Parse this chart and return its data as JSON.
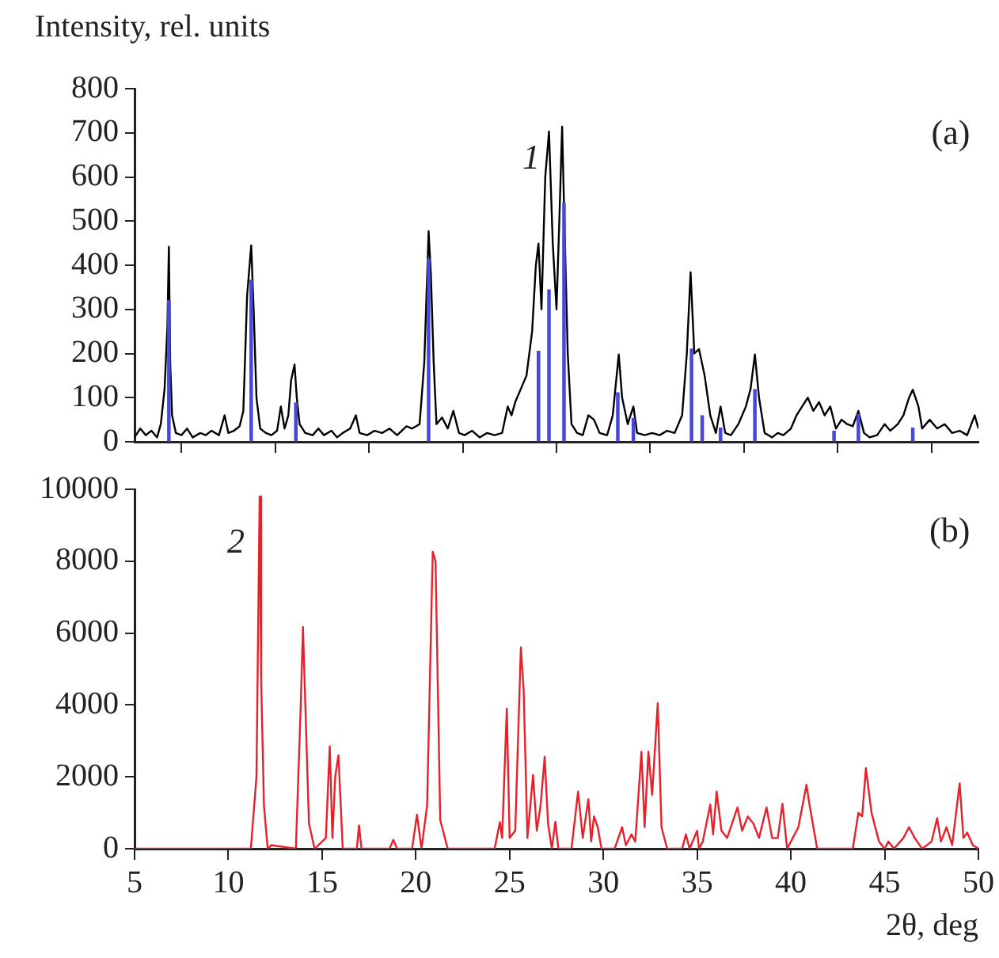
{
  "chart_data": [
    {
      "type": "line",
      "ylabel": "Intensity, rel. units",
      "annotations": [
        "(a)",
        "1"
      ],
      "xlim": [
        5,
        50
      ],
      "xticks": [
        5,
        10,
        15,
        20,
        25,
        30,
        35,
        40,
        45,
        50
      ],
      "ylim": [
        0,
        800
      ],
      "yticks": [
        0,
        100,
        200,
        300,
        400,
        500,
        600,
        700,
        800
      ],
      "tick_labels": "y",
      "series": [
        {
          "type": "line",
          "color": "#000000",
          "x": [
            5.0,
            5.3,
            5.6,
            5.9,
            6.2,
            6.4,
            6.6,
            6.75,
            6.83,
            6.9,
            7.0,
            7.2,
            7.5,
            7.8,
            8.1,
            8.5,
            8.8,
            9.1,
            9.5,
            9.8,
            10.0,
            10.3,
            10.6,
            10.8,
            11.0,
            11.22,
            11.35,
            11.5,
            11.7,
            12.0,
            12.3,
            12.6,
            12.8,
            13.0,
            13.2,
            13.35,
            13.53,
            13.65,
            13.8,
            14.1,
            14.5,
            14.8,
            15.1,
            15.5,
            15.8,
            16.1,
            16.5,
            16.8,
            17.0,
            17.4,
            17.8,
            18.2,
            18.6,
            19.0,
            19.5,
            19.8,
            20.2,
            20.45,
            20.68,
            20.8,
            20.95,
            21.1,
            21.4,
            21.7,
            22.0,
            22.3,
            22.6,
            23.0,
            23.4,
            23.8,
            24.2,
            24.6,
            24.9,
            25.1,
            25.3,
            25.6,
            25.9,
            26.2,
            26.4,
            26.54,
            26.7,
            26.9,
            27.1,
            27.3,
            27.5,
            27.65,
            27.8,
            27.95,
            28.1,
            28.3,
            28.6,
            28.9,
            29.2,
            29.5,
            29.8,
            30.2,
            30.5,
            30.82,
            31.0,
            31.3,
            31.6,
            31.8,
            32.2,
            32.6,
            33.0,
            33.4,
            33.8,
            34.2,
            34.45,
            34.65,
            34.85,
            35.1,
            35.4,
            35.7,
            36.0,
            36.25,
            36.5,
            36.8,
            37.2,
            37.6,
            37.85,
            38.08,
            38.3,
            38.6,
            39.0,
            39.3,
            39.6,
            40.0,
            40.3,
            40.6,
            40.9,
            41.2,
            41.5,
            41.8,
            42.1,
            42.4,
            42.7,
            43.0,
            43.3,
            43.6,
            43.9,
            44.2,
            44.6,
            45.0,
            45.3,
            45.7,
            46.0,
            46.3,
            46.5,
            46.8,
            47.0,
            47.4,
            47.8,
            48.2,
            48.6,
            49.0,
            49.4,
            49.8,
            50.0
          ],
          "values": [
            10,
            30,
            15,
            25,
            10,
            40,
            120,
            260,
            442,
            180,
            60,
            20,
            15,
            30,
            10,
            20,
            15,
            25,
            15,
            60,
            20,
            25,
            35,
            70,
            330,
            445,
            300,
            100,
            30,
            20,
            15,
            25,
            80,
            30,
            60,
            140,
            175,
            100,
            40,
            20,
            15,
            30,
            15,
            25,
            10,
            20,
            30,
            60,
            20,
            15,
            25,
            20,
            30,
            15,
            35,
            30,
            40,
            180,
            477,
            380,
            180,
            40,
            55,
            30,
            70,
            20,
            15,
            25,
            10,
            20,
            15,
            20,
            80,
            60,
            90,
            120,
            150,
            250,
            400,
            449,
            300,
            600,
            703,
            450,
            300,
            500,
            714,
            450,
            200,
            40,
            20,
            15,
            60,
            50,
            20,
            15,
            60,
            198,
            100,
            40,
            80,
            20,
            15,
            20,
            15,
            25,
            20,
            60,
            200,
            384,
            200,
            210,
            150,
            60,
            20,
            80,
            20,
            15,
            40,
            80,
            120,
            198,
            100,
            20,
            10,
            20,
            15,
            30,
            60,
            80,
            100,
            70,
            90,
            60,
            80,
            30,
            50,
            40,
            35,
            70,
            20,
            10,
            15,
            40,
            25,
            40,
            60,
            100,
            118,
            80,
            30,
            50,
            30,
            40,
            20,
            25,
            15,
            60,
            30
          ]
        },
        {
          "type": "bar",
          "color": "#4848d8",
          "x": [
            6.83,
            11.22,
            13.6,
            20.68,
            26.54,
            27.1,
            27.9,
            30.77,
            31.6,
            34.7,
            35.27,
            36.25,
            38.08,
            42.3,
            43.6,
            46.5
          ],
          "values": [
            320,
            366,
            88,
            414,
            205,
            344,
            540,
            111,
            53,
            210,
            59,
            31,
            118,
            24,
            62,
            31
          ]
        }
      ]
    },
    {
      "type": "line",
      "xlabel": "2θ, deg",
      "annotations": [
        "(b)",
        "2"
      ],
      "xlim": [
        5,
        50
      ],
      "xticks": [
        5,
        10,
        15,
        20,
        25,
        30,
        35,
        40,
        45,
        50
      ],
      "ylim": [
        0,
        10000
      ],
      "yticks": [
        0,
        2000,
        4000,
        6000,
        8000,
        10000
      ],
      "series": [
        {
          "type": "line",
          "color": "#e8202a",
          "x": [
            5,
            11.2,
            11.5,
            11.67,
            11.75,
            11.9,
            12.1,
            12.3,
            13.6,
            13.85,
            13.98,
            14.1,
            14.3,
            14.6,
            15.2,
            15.41,
            15.55,
            15.7,
            15.87,
            15.95,
            16.1,
            16.4,
            16.85,
            16.97,
            17.1,
            18.6,
            18.8,
            19.0,
            19.8,
            20.06,
            20.3,
            20.6,
            20.9,
            21.05,
            21.3,
            21.7,
            24.2,
            24.48,
            24.6,
            24.85,
            25.0,
            25.3,
            25.6,
            25.75,
            25.95,
            26.25,
            26.45,
            26.65,
            26.87,
            27.05,
            27.25,
            27.44,
            27.6,
            28.3,
            28.65,
            28.9,
            29.2,
            29.35,
            29.5,
            29.7,
            29.9,
            30.6,
            31.0,
            31.2,
            31.5,
            31.7,
            32.03,
            32.2,
            32.4,
            32.6,
            32.9,
            33.1,
            33.4,
            34.2,
            34.4,
            34.6,
            35.0,
            35.1,
            35.3,
            35.7,
            35.85,
            36.04,
            36.3,
            36.6,
            37.15,
            37.4,
            37.7,
            38.0,
            38.3,
            38.7,
            39.0,
            39.3,
            39.55,
            39.8,
            40.4,
            40.83,
            41.0,
            41.4,
            43.3,
            43.6,
            43.8,
            44.0,
            44.3,
            44.7,
            45.0,
            45.2,
            45.5,
            46.0,
            46.3,
            46.6,
            47.0,
            47.5,
            47.8,
            48.0,
            48.3,
            48.6,
            49.0,
            49.2,
            49.4,
            49.7,
            50
          ],
          "values": [
            0,
            0,
            2000,
            9800,
            4700,
            1200,
            0,
            100,
            0,
            3800,
            6170,
            4100,
            700,
            0,
            300,
            2850,
            300,
            2000,
            2600,
            1700,
            0,
            0,
            0,
            650,
            0,
            0,
            250,
            0,
            0,
            950,
            0,
            1200,
            8260,
            8000,
            800,
            0,
            0,
            740,
            300,
            3900,
            300,
            500,
            5600,
            4400,
            300,
            2050,
            500,
            1200,
            2560,
            700,
            0,
            750,
            0,
            0,
            1590,
            300,
            1380,
            200,
            900,
            600,
            0,
            0,
            600,
            100,
            400,
            200,
            2700,
            600,
            2700,
            1500,
            4050,
            600,
            0,
            0,
            400,
            0,
            500,
            0,
            200,
            1230,
            400,
            1590,
            500,
            300,
            1150,
            500,
            900,
            700,
            300,
            1150,
            300,
            300,
            1250,
            0,
            600,
            1780,
            1200,
            0,
            0,
            1000,
            900,
            2240,
            1000,
            200,
            0,
            200,
            0,
            300,
            600,
            300,
            0,
            200,
            850,
            200,
            600,
            100,
            1820,
            300,
            450,
            100,
            0
          ]
        }
      ]
    }
  ]
}
